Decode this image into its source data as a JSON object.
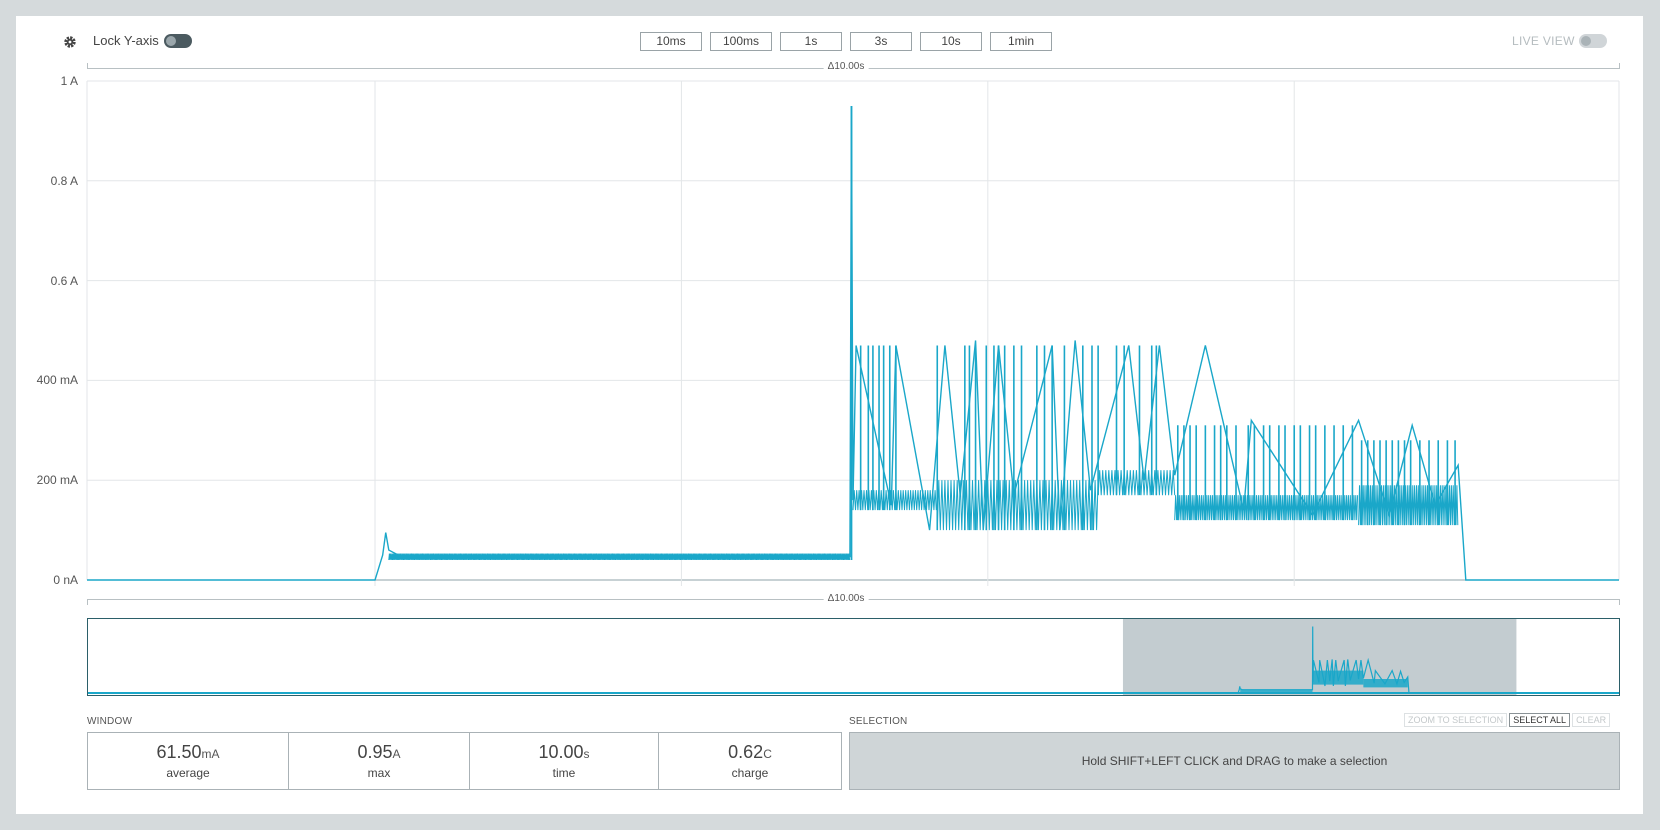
{
  "toolbar": {
    "lock_y_label": "Lock Y-axis",
    "zoom_buttons": [
      "10ms",
      "100ms",
      "1s",
      "3s",
      "10s",
      "1min"
    ],
    "live_view_label": "LIVE VIEW"
  },
  "chart": {
    "delta_top": "Δ10.00s",
    "delta_bottom": "Δ10.00s"
  },
  "chart_data": {
    "type": "line",
    "title": "",
    "xlabel": "",
    "ylabel": "",
    "x_unit": "s",
    "xlim": [
      0,
      10
    ],
    "ylim": [
      0,
      1
    ],
    "y_unit": "A",
    "yticks": [
      {
        "value": 0,
        "label": "0 nA"
      },
      {
        "value": 0.2,
        "label": "200 mA"
      },
      {
        "value": 0.4,
        "label": "400 mA"
      },
      {
        "value": 0.6,
        "label": "0.6 A"
      },
      {
        "value": 0.8,
        "label": "0.8 A"
      },
      {
        "value": 1.0,
        "label": "1 A"
      }
    ],
    "grid": true,
    "series_color": "#1aa7c9",
    "series": [
      {
        "name": "",
        "x": [
          0,
          1.88,
          1.9,
          1.93,
          1.95,
          1.97,
          2.05,
          4.98,
          4.99,
          5.0,
          5.02,
          5.25,
          5.28,
          5.5,
          5.6,
          5.7,
          5.8,
          5.85,
          5.95,
          6.05,
          6.3,
          6.35,
          6.45,
          6.55,
          6.8,
          6.9,
          7.0,
          7.1,
          7.3,
          7.55,
          7.6,
          8.0,
          8.3,
          8.5,
          8.65,
          8.8,
          8.95,
          9.0,
          10.0
        ],
        "y": [
          0,
          0,
          0.02,
          0.05,
          0.095,
          0.06,
          0.047,
          0.047,
          0.95,
          0.16,
          0.47,
          0.15,
          0.47,
          0.1,
          0.47,
          0.17,
          0.48,
          0.1,
          0.47,
          0.17,
          0.47,
          0.1,
          0.48,
          0.18,
          0.47,
          0.2,
          0.47,
          0.21,
          0.47,
          0.14,
          0.32,
          0.13,
          0.32,
          0.13,
          0.31,
          0.15,
          0.23,
          0.0,
          0.0
        ]
      }
    ]
  },
  "minimap": {
    "selection_start_fraction": 0.676,
    "selection_end_fraction": 0.933
  },
  "window": {
    "label": "WINDOW",
    "stats": [
      {
        "value": "61.50",
        "unit": "mA",
        "label": "average"
      },
      {
        "value": "0.95",
        "unit": "A",
        "label": "max"
      },
      {
        "value": "10.00",
        "unit": "s",
        "label": "time"
      },
      {
        "value": "0.62",
        "unit": "C",
        "label": "charge"
      }
    ]
  },
  "selection": {
    "label": "SELECTION",
    "hint": "Hold SHIFT+LEFT CLICK and DRAG to make a selection",
    "zoom_to_selection": "ZOOM TO SELECTION",
    "select_all": "SELECT ALL",
    "clear": "CLEAR"
  }
}
